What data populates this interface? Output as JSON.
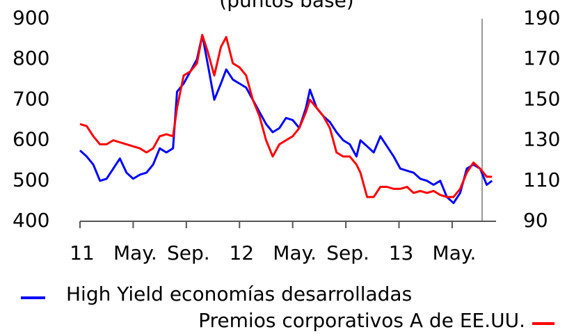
{
  "chart_data": {
    "type": "line",
    "subtitle": "(puntos base)",
    "x": [
      0,
      0.5,
      1,
      1.5,
      2,
      2.5,
      3,
      3.5,
      4,
      4.5,
      5,
      5.5,
      6,
      6.5,
      7,
      7.3,
      7.8,
      8.3,
      8.8,
      9.2,
      9.6,
      10.1,
      10.6,
      11,
      11.5,
      12,
      12.5,
      13,
      13.5,
      14,
      14.5,
      15,
      15.5,
      16,
      16.5,
      17,
      17.3,
      17.8,
      18.3,
      18.8,
      19.3,
      19.8,
      20.3,
      20.8,
      21.1,
      21.6,
      22.1,
      22.6,
      23.1,
      23.6,
      24.1,
      24.6,
      25.1,
      25.6,
      26.1,
      26.6,
      27.1,
      27.6,
      28.1,
      28.6,
      29.1,
      29.6,
      30.1,
      30.6,
      31
    ],
    "xlim": [
      0,
      31.3
    ],
    "xticks": [
      {
        "value": 0,
        "label": "11"
      },
      {
        "value": 4,
        "label": "May."
      },
      {
        "value": 8,
        "label": "Sep."
      },
      {
        "value": 12,
        "label": "12"
      },
      {
        "value": 16,
        "label": "May."
      },
      {
        "value": 20,
        "label": "Sep."
      },
      {
        "value": 24,
        "label": "13"
      },
      {
        "value": 28,
        "label": "May."
      }
    ],
    "ylim": [
      400,
      900
    ],
    "yticks": [
      400,
      500,
      600,
      700,
      800,
      900
    ],
    "y2lim": [
      90,
      190
    ],
    "y2ticks": [
      90,
      110,
      130,
      150,
      170,
      190
    ],
    "grid": false,
    "series": [
      {
        "name": "High Yield economías desarrolladas",
        "color": "#0000ff",
        "values": [
          575,
          560,
          540,
          500,
          505,
          530,
          555,
          520,
          505,
          515,
          520,
          540,
          580,
          570,
          580,
          720,
          740,
          770,
          800,
          860,
          790,
          700,
          740,
          775,
          750,
          740,
          730,
          700,
          670,
          640,
          620,
          630,
          655,
          650,
          630,
          680,
          725,
          680,
          660,
          645,
          620,
          600,
          590,
          560,
          600,
          585,
          570,
          610,
          585,
          560,
          530,
          525,
          520,
          505,
          500,
          490,
          500,
          460,
          445,
          470,
          530,
          540,
          530,
          490,
          500
        ]
      },
      {
        "name": "Premios corporativos A de EE.UU.",
        "color": "#ff0000",
        "axis": "y2",
        "values": [
          138,
          137,
          132,
          128,
          128,
          130,
          129,
          128,
          127,
          126,
          124,
          126,
          132,
          133,
          132,
          146,
          162,
          164,
          168,
          182,
          174,
          162,
          176,
          181,
          168,
          166,
          162,
          150,
          142,
          130,
          122,
          128,
          130,
          132,
          136,
          144,
          150,
          146,
          142,
          136,
          124,
          122,
          122,
          118,
          114,
          102,
          102,
          107,
          107,
          106,
          106,
          107,
          104,
          105,
          104,
          105,
          103,
          102,
          102,
          106,
          114,
          119,
          116,
          112,
          112
        ]
      }
    ]
  }
}
